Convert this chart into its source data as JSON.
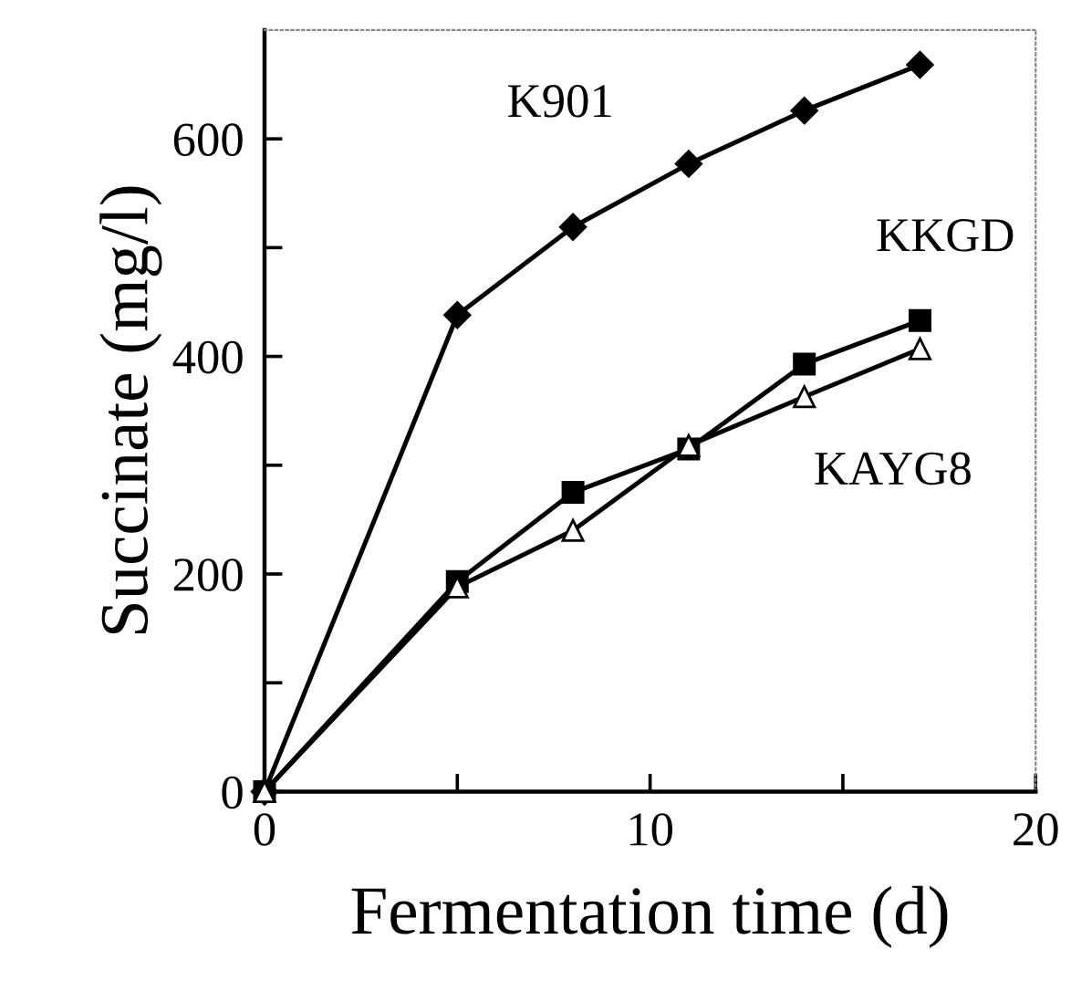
{
  "chart_data": {
    "type": "line",
    "xlabel": "Fermentation time (d)",
    "ylabel": "Succinate (mg/l)",
    "x": [
      0,
      5,
      8,
      11,
      14,
      17
    ],
    "series": [
      {
        "name": "K901",
        "color": "#000000",
        "marker": "diamond",
        "values": [
          0,
          438,
          519,
          577,
          626,
          668
        ]
      },
      {
        "name": "KKGD",
        "color": "#000000",
        "marker": "square",
        "values": [
          0,
          193,
          275,
          315,
          393,
          433
        ]
      },
      {
        "name": "KAYG8",
        "color": "#000000",
        "marker": "triangle",
        "values": [
          0,
          188,
          240,
          318,
          363,
          407
        ]
      }
    ],
    "xlim": [
      0,
      20
    ],
    "xticks": [
      0,
      {
        "value": 5,
        "label": null
      },
      10,
      {
        "value": 15,
        "label": null
      },
      20
    ],
    "ylim": [
      0,
      700
    ],
    "yticks": [
      0,
      {
        "value": 100,
        "label": null
      },
      200,
      {
        "value": 300,
        "label": null
      },
      400,
      {
        "value": 500,
        "label": null
      },
      600
    ],
    "grid": false,
    "legend": false,
    "line_style": "solid"
  }
}
